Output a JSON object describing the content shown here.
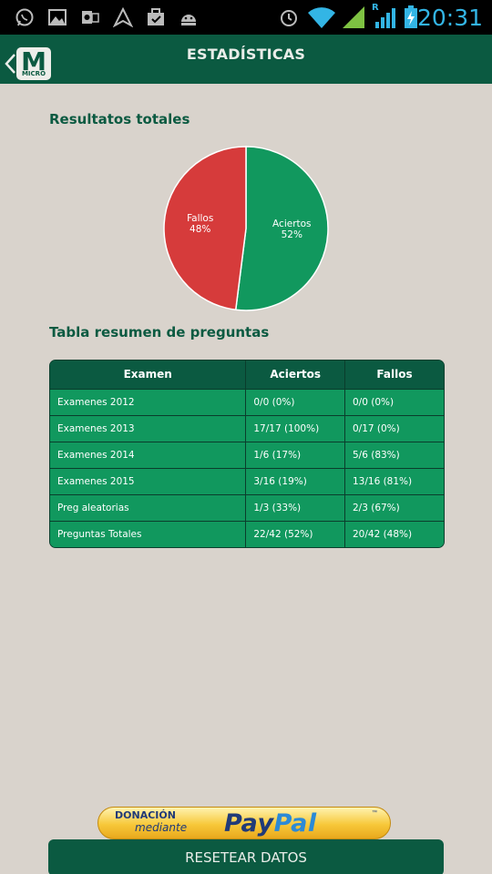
{
  "status_bar": {
    "time": "20:31",
    "roaming_indicator": "R",
    "icons": [
      "whatsapp-icon",
      "gallery-icon",
      "outlook-icon",
      "navigation-icon",
      "briefcase-icon",
      "android-icon",
      "alarm-icon",
      "wifi-icon",
      "signal-icon",
      "roaming-signal-icon",
      "battery-icon"
    ]
  },
  "app_bar": {
    "title": "ESTADÍSTICAS",
    "logo_letter": "M",
    "logo_caption": "MICRO"
  },
  "results": {
    "heading": "Resultatos totales"
  },
  "chart_data": {
    "type": "pie",
    "slices": [
      {
        "label": "Aciertos",
        "value": 52,
        "display": "52%",
        "color": "#11985e"
      },
      {
        "label": "Fallos",
        "value": 48,
        "display": "48%",
        "color": "#d63b3b"
      }
    ]
  },
  "summary": {
    "heading": "Tabla resumen de preguntas",
    "columns": [
      "Examen",
      "Aciertos",
      "Fallos"
    ],
    "rows": [
      [
        "Examenes 2012",
        "0/0 (0%)",
        "0/0 (0%)"
      ],
      [
        "Examenes 2013",
        "17/17 (100%)",
        "0/17 (0%)"
      ],
      [
        "Examenes 2014",
        "1/6 (17%)",
        "5/6 (83%)"
      ],
      [
        "Examenes 2015",
        "3/16 (19%)",
        "13/16 (81%)"
      ],
      [
        "Preg aleatorias",
        "1/3 (33%)",
        "2/3 (67%)"
      ],
      [
        "Preguntas Totales",
        "22/42 (52%)",
        "20/42 (48%)"
      ]
    ]
  },
  "donation": {
    "line1": "DONACIÓN",
    "line2": "mediante",
    "brand_a": "Pay",
    "brand_b": "Pal",
    "tm": "™"
  },
  "actions": {
    "reset_label": "RESETEAR DATOS"
  },
  "colors": {
    "primary": "#0b5a41",
    "accent_green": "#11985e",
    "accent_red": "#d63b3b",
    "background": "#d9d3cc"
  }
}
